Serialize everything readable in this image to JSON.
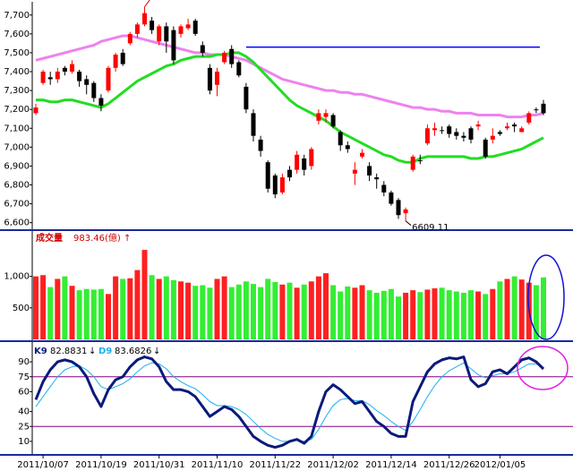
{
  "chart_data": [
    {
      "type": "candlestick",
      "open": [
        7180,
        7340,
        7370,
        7360,
        7420,
        7400,
        7400,
        7360,
        7340,
        7260,
        7300,
        7420,
        7500,
        7550,
        7600,
        7650,
        7670,
        7560,
        7640,
        7620,
        7600,
        7630,
        7670,
        7540,
        7420,
        7330,
        7450,
        7520,
        7450,
        7320,
        7180,
        7040,
        6920,
        6850,
        6760,
        6880,
        6880,
        6940,
        6900,
        7140,
        7160,
        7170,
        7080,
        7010,
        6860,
        6950,
        6900,
        6840,
        6800,
        6760,
        6720,
        6650,
        6880,
        6930,
        7020,
        7090,
        7090,
        7110,
        7080,
        7060,
        7100,
        7110,
        7040,
        7040,
        7080,
        7100,
        7120,
        7080,
        7130,
        7200,
        7230
      ],
      "high": [
        7230,
        7410,
        7400,
        7420,
        7430,
        7460,
        7410,
        7380,
        7350,
        7280,
        7430,
        7500,
        7520,
        7610,
        7660,
        7743.37,
        7690,
        7650,
        7660,
        7640,
        7650,
        7680,
        7680,
        7560,
        7440,
        7420,
        7510,
        7540,
        7460,
        7340,
        7200,
        7060,
        6930,
        6860,
        6860,
        6900,
        6980,
        6960,
        7000,
        7200,
        7200,
        7180,
        7090,
        7030,
        6920,
        6990,
        6920,
        6860,
        6820,
        6770,
        6730,
        6680,
        6960,
        6960,
        7120,
        7130,
        7110,
        7120,
        7100,
        7080,
        7110,
        7140,
        7050,
        7100,
        7090,
        7130,
        7130,
        7110,
        7190,
        7210,
        7250
      ],
      "low": [
        7170,
        7330,
        7330,
        7340,
        7380,
        7390,
        7320,
        7280,
        7240,
        7190,
        7290,
        7400,
        7430,
        7540,
        7580,
        7640,
        7600,
        7540,
        7500,
        7440,
        7580,
        7620,
        7590,
        7480,
        7280,
        7270,
        7440,
        7420,
        7370,
        7180,
        7030,
        6950,
        6760,
        6730,
        6750,
        6820,
        6860,
        6850,
        6880,
        7120,
        7130,
        7100,
        6980,
        6970,
        6800,
        6940,
        6820,
        6780,
        6740,
        6690,
        6620,
        6609.11,
        6870,
        6910,
        7010,
        7060,
        7070,
        7050,
        7040,
        7030,
        7020,
        7090,
        6940,
        7020,
        7060,
        7090,
        7080,
        7080,
        7120,
        7180,
        7170
      ],
      "close": [
        7210,
        7400,
        7360,
        7400,
        7400,
        7440,
        7350,
        7330,
        7260,
        7220,
        7420,
        7490,
        7440,
        7600,
        7650,
        7710,
        7620,
        7640,
        7560,
        7460,
        7640,
        7650,
        7600,
        7500,
        7300,
        7400,
        7500,
        7440,
        7380,
        7200,
        7060,
        6980,
        6780,
        6750,
        6840,
        6840,
        6960,
        6880,
        6990,
        7180,
        7180,
        7110,
        7010,
        6990,
        6880,
        6970,
        6850,
        6830,
        6760,
        6700,
        6640,
        6670,
        6950,
        6930,
        7100,
        7100,
        7090,
        7070,
        7060,
        7050,
        7040,
        7120,
        6950,
        7060,
        7070,
        7110,
        7110,
        7100,
        7180,
        7200,
        7180
      ],
      "up_color": "#ff0000",
      "down_color": "#000000",
      "series": [
        {
          "color": "#ee82ee",
          "values": [
            7460,
            7470,
            7480,
            7490,
            7500,
            7510,
            7520,
            7530,
            7540,
            7560,
            7570,
            7580,
            7590,
            7590,
            7580,
            7570,
            7560,
            7550,
            7540,
            7530,
            7520,
            7510,
            7500,
            7500,
            7490,
            7490,
            7490,
            7480,
            7470,
            7460,
            7440,
            7420,
            7400,
            7380,
            7360,
            7350,
            7340,
            7330,
            7320,
            7310,
            7300,
            7300,
            7290,
            7290,
            7280,
            7280,
            7270,
            7260,
            7250,
            7240,
            7230,
            7220,
            7210,
            7210,
            7200,
            7200,
            7190,
            7190,
            7180,
            7180,
            7180,
            7170,
            7170,
            7170,
            7170,
            7160,
            7160,
            7160,
            7170,
            7170,
            7180
          ]
        },
        {
          "color": "#22dd22",
          "values": [
            7250,
            7250,
            7240,
            7240,
            7250,
            7250,
            7240,
            7230,
            7220,
            7210,
            7230,
            7260,
            7290,
            7320,
            7350,
            7370,
            7390,
            7410,
            7430,
            7440,
            7460,
            7470,
            7480,
            7480,
            7480,
            7490,
            7490,
            7500,
            7500,
            7480,
            7450,
            7410,
            7370,
            7330,
            7290,
            7250,
            7220,
            7200,
            7180,
            7160,
            7140,
            7110,
            7080,
            7060,
            7040,
            7020,
            7000,
            6980,
            6960,
            6950,
            6930,
            6920,
            6920,
            6940,
            6950,
            6950,
            6950,
            6950,
            6950,
            6950,
            6940,
            6940,
            6950,
            6950,
            6960,
            6970,
            6980,
            6990,
            7010,
            7030,
            7050
          ]
        }
      ],
      "hline": {
        "value": 7530,
        "color": "#0000ff"
      },
      "ylim": [
        6570,
        7770
      ],
      "yticks": [
        {
          "value": 6600,
          "label": "6,600"
        },
        {
          "value": 6700,
          "label": "6,700"
        },
        {
          "value": 6800,
          "label": "6,800"
        },
        {
          "value": 6900,
          "label": "6,900"
        },
        {
          "value": 7000,
          "label": "7,000"
        },
        {
          "value": 7100,
          "label": "7,100"
        },
        {
          "value": 7200,
          "label": "7,200"
        },
        {
          "value": 7300,
          "label": "7,300"
        },
        {
          "value": 7400,
          "label": "7,400"
        },
        {
          "value": 7500,
          "label": "7,500"
        },
        {
          "value": 7600,
          "label": "7,600"
        },
        {
          "value": 7700,
          "label": "7,700"
        }
      ]
    },
    {
      "type": "bar",
      "title": "成交量",
      "unit": "(億)",
      "arrow": "↑",
      "values": [
        1000,
        1020,
        830,
        960,
        1000,
        850,
        780,
        800,
        790,
        800,
        720,
        1000,
        960,
        970,
        1100,
        1420,
        1020,
        960,
        1000,
        940,
        920,
        900,
        850,
        860,
        820,
        960,
        1000,
        830,
        870,
        920,
        880,
        830,
        960,
        910,
        870,
        900,
        820,
        870,
        920,
        1000,
        1050,
        860,
        760,
        840,
        820,
        860,
        780,
        740,
        770,
        800,
        680,
        740,
        780,
        750,
        790,
        810,
        820,
        780,
        760,
        740,
        780,
        760,
        720,
        800,
        920,
        960,
        1000,
        950,
        900,
        860,
        983.46
      ],
      "up_color": "#ff2020",
      "down_color": "#33ee33",
      "ylim": [
        0,
        1720
      ],
      "yticks": [
        500,
        {
          "value": 1000,
          "label": "1,000"
        }
      ]
    },
    {
      "type": "line",
      "categories": [
        null,
        "2011/10/07",
        null,
        null,
        null,
        null,
        null,
        null,
        null,
        "2011/10/19",
        null,
        null,
        null,
        null,
        null,
        null,
        null,
        "2011/10/31",
        null,
        null,
        null,
        null,
        null,
        null,
        null,
        "2011/11/10",
        null,
        null,
        null,
        null,
        null,
        null,
        null,
        "2011/11/22",
        null,
        null,
        null,
        null,
        null,
        null,
        null,
        "2011/12/02",
        null,
        null,
        null,
        null,
        null,
        null,
        null,
        "2011/12/14",
        null,
        null,
        null,
        null,
        null,
        null,
        null,
        "2011/12/26",
        null,
        null,
        null,
        null,
        null,
        null,
        "2012/01/05",
        null,
        null,
        null,
        null,
        null,
        null
      ],
      "series": [
        {
          "name": "K9",
          "color": "#0a1a7a",
          "arrow": "↓",
          "values": [
            52,
            70,
            82,
            90,
            92,
            90,
            85,
            75,
            58,
            45,
            62,
            72,
            75,
            85,
            92,
            95,
            93,
            85,
            70,
            62,
            62,
            60,
            55,
            45,
            35,
            40,
            45,
            42,
            35,
            25,
            15,
            10,
            6,
            4,
            6,
            10,
            12,
            8,
            15,
            40,
            60,
            67,
            62,
            55,
            48,
            50,
            40,
            30,
            25,
            18,
            15,
            15,
            50,
            65,
            80,
            88,
            92,
            94,
            93,
            95,
            72,
            65,
            68,
            80,
            82,
            78,
            85,
            92,
            94,
            90,
            82.8831
          ]
        },
        {
          "name": "D9",
          "color": "#1ab0f0",
          "arrow": "↓",
          "values": [
            45,
            55,
            65,
            75,
            82,
            85,
            86,
            82,
            75,
            65,
            62,
            65,
            68,
            73,
            80,
            86,
            89,
            88,
            83,
            75,
            70,
            66,
            63,
            57,
            50,
            46,
            46,
            45,
            42,
            37,
            30,
            23,
            17,
            13,
            10,
            10,
            11,
            10,
            12,
            22,
            35,
            46,
            52,
            53,
            51,
            51,
            47,
            41,
            36,
            30,
            25,
            21,
            30,
            42,
            55,
            66,
            75,
            81,
            85,
            89,
            83,
            77,
            74,
            76,
            78,
            78,
            80,
            84,
            88,
            88,
            83.6826
          ]
        }
      ],
      "reference_lines": [
        75,
        25
      ],
      "reference_color": "#800080",
      "ylim": [
        0,
        100
      ],
      "yticks": [
        10,
        25,
        40,
        60,
        75,
        90
      ]
    }
  ]
}
